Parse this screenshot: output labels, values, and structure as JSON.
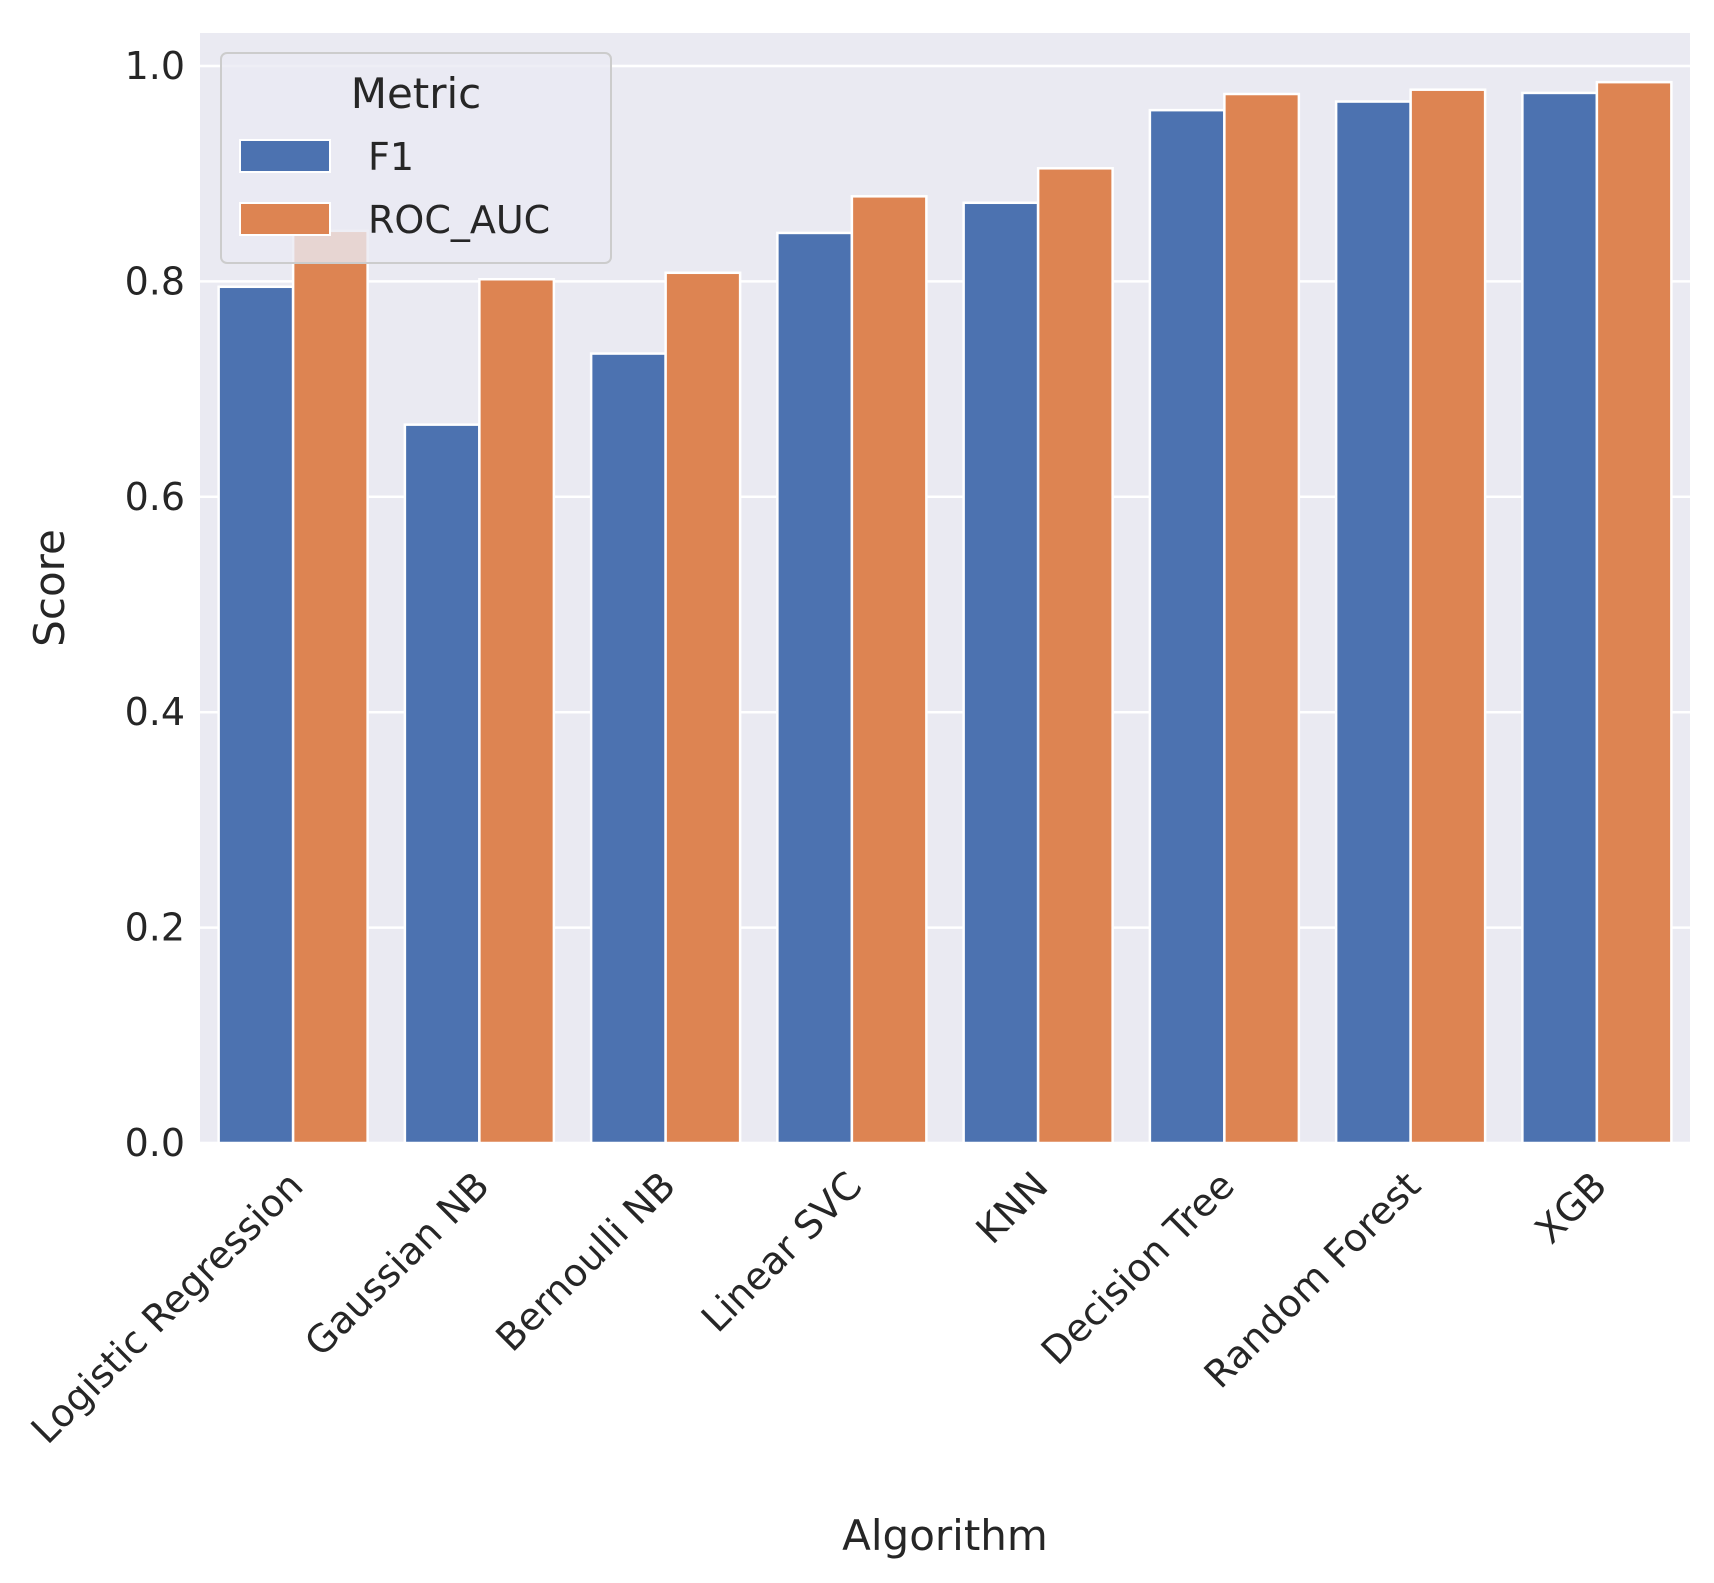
{
  "chart_data": {
    "type": "bar",
    "xlabel": "Algorithm",
    "ylabel": "Score",
    "ylim": [
      0,
      1.03
    ],
    "yticks": [
      "0.0",
      "0.2",
      "0.4",
      "0.6",
      "0.8",
      "1.0"
    ],
    "grid": true,
    "categories": [
      "Logistic Regression",
      "Gaussian NB",
      "Bernoulli NB",
      "Linear SVC",
      "KNN",
      "Decision Tree",
      "Random Forest",
      "XGB"
    ],
    "series": [
      {
        "name": "F1",
        "color": "#4c72b0",
        "values": [
          0.795,
          0.667,
          0.733,
          0.845,
          0.873,
          0.959,
          0.967,
          0.975
        ]
      },
      {
        "name": "ROC_AUC",
        "color": "#dd8452",
        "values": [
          0.847,
          0.802,
          0.808,
          0.879,
          0.905,
          0.974,
          0.978,
          0.985
        ]
      }
    ],
    "legend": {
      "title": "Metric",
      "position": "top-left"
    },
    "background_color": "#eaeaf2",
    "grid_color": "#ffffff"
  }
}
